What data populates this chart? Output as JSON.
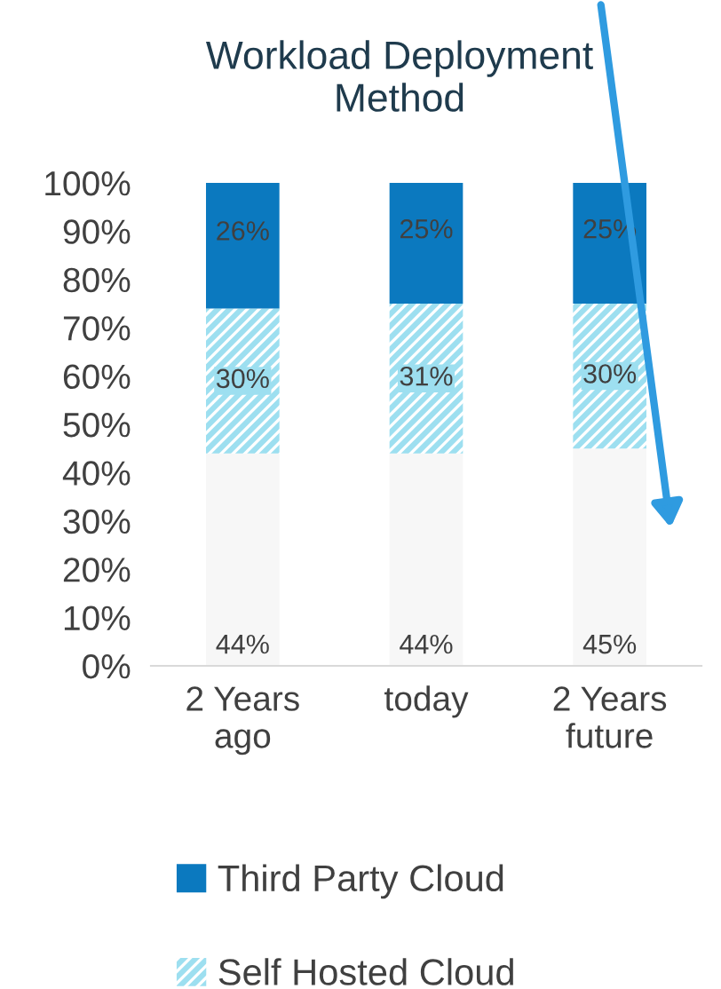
{
  "chart_data": {
    "type": "bar",
    "stacked": true,
    "title": "Workload Deployment\nMethod",
    "categories": [
      "2 Years\nago",
      "today",
      "2 Years\nfuture"
    ],
    "series": [
      {
        "color": "#f7f7f7",
        "values": [
          44,
          44,
          45
        ],
        "value_labels": [
          "44%",
          "44%",
          "45%"
        ]
      },
      {
        "name": "Self Hosted Cloud",
        "color": "#9ddff0",
        "values": [
          30,
          31,
          30
        ],
        "value_labels": [
          "30%",
          "31%",
          "30%"
        ]
      },
      {
        "name": "Third Party Cloud",
        "color": "#0b79bf",
        "values": [
          26,
          25,
          25
        ],
        "value_labels": [
          "26%",
          "25%",
          "25%"
        ]
      }
    ],
    "ylim": [
      0,
      100
    ],
    "yticks": [
      {
        "value": 0,
        "label": "0%"
      },
      {
        "value": 10,
        "label": "10%"
      },
      {
        "value": 20,
        "label": "20%"
      },
      {
        "value": 30,
        "label": "30%"
      },
      {
        "value": 40,
        "label": "40%"
      },
      {
        "value": 50,
        "label": "50%"
      },
      {
        "value": 60,
        "label": "60%"
      },
      {
        "value": 70,
        "label": "70%"
      },
      {
        "value": 80,
        "label": "80%"
      },
      {
        "value": 90,
        "label": "90%"
      },
      {
        "value": 100,
        "label": "100%"
      }
    ],
    "grid": false,
    "legend": "bottom"
  }
}
